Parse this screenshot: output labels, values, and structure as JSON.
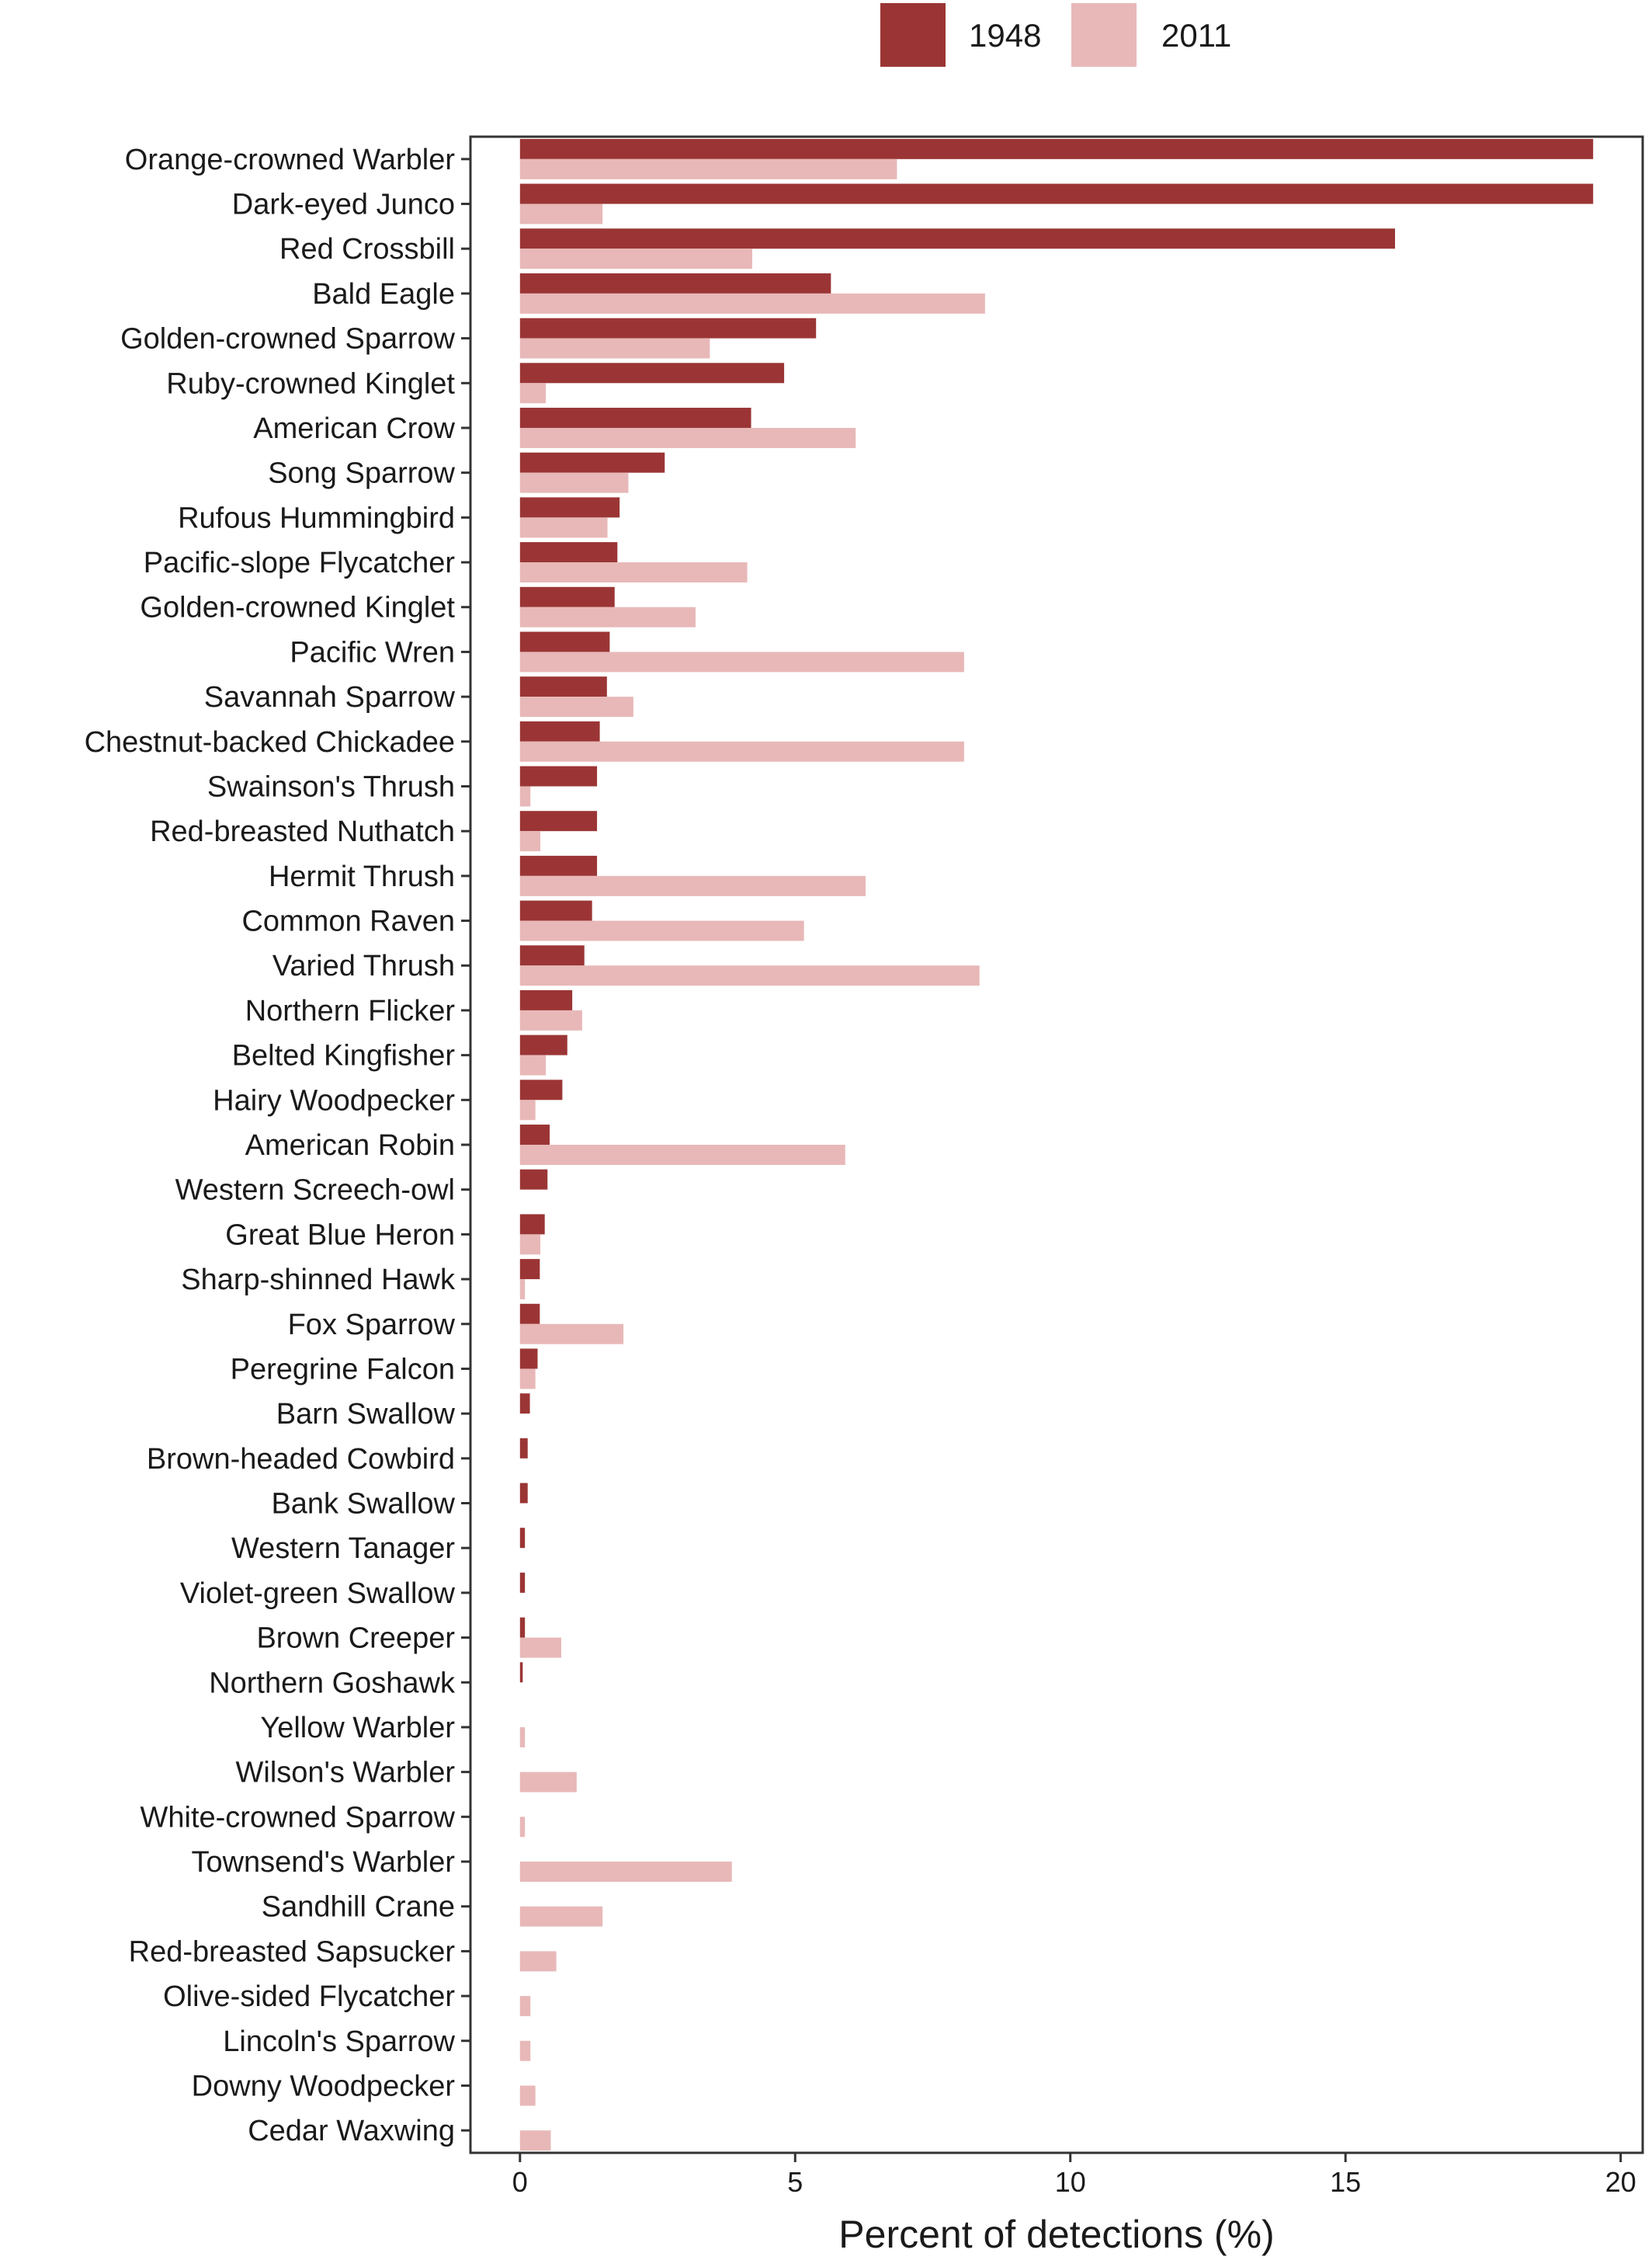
{
  "chart_data": {
    "type": "bar",
    "orientation": "horizontal",
    "title": "",
    "xlabel": "Percent of detections (%)",
    "ylabel": "",
    "xlim": [
      -0.9,
      20.4
    ],
    "xticks": [
      0,
      5,
      10,
      15,
      20
    ],
    "xtick_labels": [
      "0",
      "5",
      "10",
      "15",
      "20"
    ],
    "grid": false,
    "legend_position": "top",
    "categories": [
      "Orange-crowned Warbler",
      "Dark-eyed Junco",
      "Red Crossbill",
      "Bald Eagle",
      "Golden-crowned Sparrow",
      "Ruby-crowned Kinglet",
      "American Crow",
      "Song Sparrow",
      "Rufous Hummingbird",
      "Pacific-slope Flycatcher",
      "Golden-crowned Kinglet",
      "Pacific Wren",
      "Savannah Sparrow",
      "Chestnut-backed Chickadee",
      "Swainson's Thrush",
      "Red-breasted Nuthatch",
      "Hermit Thrush",
      "Common Raven",
      "Varied Thrush",
      "Northern Flicker",
      "Belted Kingfisher",
      "Hairy Woodpecker",
      "American Robin",
      "Western Screech-owl",
      "Great Blue Heron",
      "Sharp-shinned Hawk",
      "Fox Sparrow",
      "Peregrine Falcon",
      "Barn Swallow",
      "Brown-headed Cowbird",
      "Bank Swallow",
      "Western Tanager",
      "Violet-green Swallow",
      "Brown Creeper",
      "Northern Goshawk",
      "Yellow Warbler",
      "Wilson's Warbler",
      "White-crowned Sparrow",
      "Townsend's Warbler",
      "Sandhill Crane",
      "Red-breasted Sapsucker",
      "Olive-sided Flycatcher",
      "Lincoln's Sparrow",
      "Downy Woodpecker",
      "Cedar Waxwing"
    ],
    "series": [
      {
        "name": "1948",
        "color": "#9b3535",
        "values": [
          19.5,
          19.5,
          15.9,
          5.65,
          5.38,
          4.8,
          4.2,
          2.63,
          1.81,
          1.77,
          1.72,
          1.63,
          1.58,
          1.45,
          1.4,
          1.4,
          1.4,
          1.31,
          1.17,
          0.95,
          0.86,
          0.77,
          0.54,
          0.5,
          0.45,
          0.36,
          0.36,
          0.32,
          0.18,
          0.14,
          0.14,
          0.09,
          0.09,
          0.09,
          0.05,
          0,
          0,
          0,
          0,
          0,
          0,
          0,
          0,
          0,
          0
        ]
      },
      {
        "name": "2011",
        "color": "#e8b8b8",
        "values": [
          6.85,
          1.5,
          4.22,
          8.45,
          3.45,
          0.47,
          6.1,
          1.97,
          1.59,
          4.13,
          3.19,
          8.07,
          2.06,
          8.07,
          0.19,
          0.37,
          6.28,
          5.16,
          8.35,
          1.13,
          0.47,
          0.28,
          5.91,
          0,
          0.37,
          0.09,
          1.88,
          0.28,
          0,
          0,
          0,
          0,
          0,
          0.75,
          0,
          0.09,
          1.03,
          0.09,
          3.85,
          1.5,
          0.66,
          0.19,
          0.19,
          0.28,
          0.56
        ]
      }
    ]
  }
}
